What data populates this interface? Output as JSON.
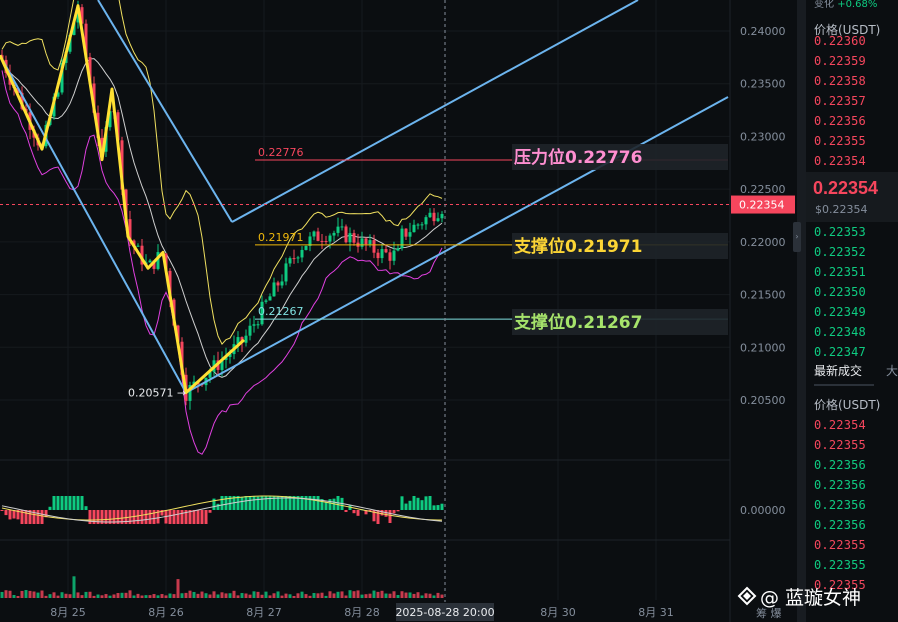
{
  "chart_data": {
    "type": "candlestick",
    "price_axis": {
      "min": 0.2005,
      "max": 0.2425,
      "ticks": [
        "0.24000",
        "0.23500",
        "0.23000",
        "0.22500",
        "0.22000",
        "0.21500",
        "0.21000",
        "0.20500"
      ]
    },
    "macd_axis_label": "0.00000",
    "x_ticks": [
      "8月 25",
      "8月 26",
      "8月 27",
      "8月 28",
      "8月 30",
      "8月 31"
    ],
    "crosshair_time": "2025-08-28 20:00",
    "current_price": "0.22354",
    "low_label": "0.20571",
    "levels": [
      {
        "name": "压力位",
        "value": "0.22776",
        "color": "#f6465d",
        "tag_text": "压力位0.22776",
        "tag_color": "#ff8fd1"
      },
      {
        "name": "支撑位",
        "value": "0.21971",
        "color": "#f0b90b",
        "tag_text": "支撑位0.21971",
        "tag_color": "#fcd535"
      },
      {
        "name": "支撑位",
        "value": "0.21267",
        "color": "#7fe0e0",
        "tag_text": "支撑位0.21267",
        "tag_color": "#a6e36b"
      }
    ],
    "zigzag": [
      [
        0.2377,
        0
      ],
      [
        0.2288,
        1
      ],
      [
        0.2424,
        2
      ],
      [
        0.2278,
        3
      ],
      [
        0.2345,
        4
      ],
      [
        0.2205,
        5
      ],
      [
        0.2175,
        6
      ],
      [
        0.219,
        7
      ],
      [
        0.2057,
        8
      ],
      [
        0.2107,
        9
      ]
    ]
  },
  "order_book": {
    "header": "价格(USDT)",
    "top_cut_label": "变化",
    "top_cut_value": "+0.68%",
    "asks": [
      "0.22360",
      "0.22359",
      "0.22358",
      "0.22357",
      "0.22356",
      "0.22355",
      "0.22354"
    ],
    "mid_price": "0.22354",
    "mid_sub": "$0.22354",
    "bids": [
      "0.22353",
      "0.22352",
      "0.22351",
      "0.22350",
      "0.22349",
      "0.22348",
      "0.22347"
    ]
  },
  "trades": {
    "tab_active": "最新成交",
    "tab_other": "大",
    "header": "价格(USDT)",
    "rows": [
      {
        "price": "0.22354",
        "side": "sell"
      },
      {
        "price": "0.22355",
        "side": "sell"
      },
      {
        "price": "0.22356",
        "side": "buy"
      },
      {
        "price": "0.22356",
        "side": "buy"
      },
      {
        "price": "0.22356",
        "side": "buy"
      },
      {
        "price": "0.22356",
        "side": "buy"
      },
      {
        "price": "0.22355",
        "side": "sell"
      },
      {
        "price": "0.22355",
        "side": "buy"
      },
      {
        "price": "0.22355",
        "side": "sell"
      }
    ]
  },
  "watermark": "@ 蓝璇女神",
  "bottom_buttons": "筹 爆",
  "colors": {
    "up": "#0ecb81",
    "down": "#f6465d",
    "bg": "#0b0e11",
    "channel": "#6cb4ee",
    "boll_up": "#f0e060",
    "boll_mid": "#cfcfcf",
    "boll_low": "#e040e0",
    "zigzag": "#ffe033"
  }
}
